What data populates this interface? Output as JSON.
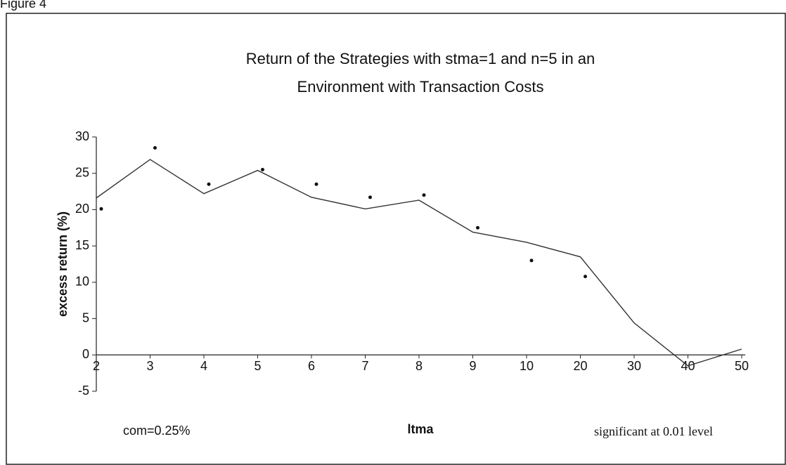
{
  "chart_data": {
    "type": "line",
    "figure_label": "Figure 4",
    "title": [
      "Return of the Strategies with stma=1 and n=5 in an",
      "Environment with Transaction Costs"
    ],
    "y_label": "excess return (%)",
    "x_label": "ltma",
    "annotations": [
      "com=0.25%"
    ],
    "categories": [
      "2",
      "3",
      "4",
      "5",
      "6",
      "7",
      "8",
      "9",
      "10",
      "20",
      "30",
      "40",
      "50"
    ],
    "series": [
      {
        "name": "com=0.25%",
        "color": "#333333",
        "style": "line",
        "values": [
          21.6,
          26.9,
          22.2,
          25.4,
          21.7,
          20.1,
          21.3,
          16.9,
          15.5,
          13.5,
          4.4,
          -1.5,
          0.8
        ]
      },
      {
        "name": "significant at 0.01 level",
        "color": "#111111",
        "style": "points",
        "values": [
          20.1,
          28.5,
          23.5,
          25.5,
          23.5,
          21.7,
          22,
          17.5,
          13,
          10.8,
          null,
          null,
          null
        ]
      }
    ],
    "ylim": [
      -5,
      30
    ],
    "yticks": [
      -5,
      0,
      5,
      10,
      15,
      20,
      25,
      30
    ]
  }
}
